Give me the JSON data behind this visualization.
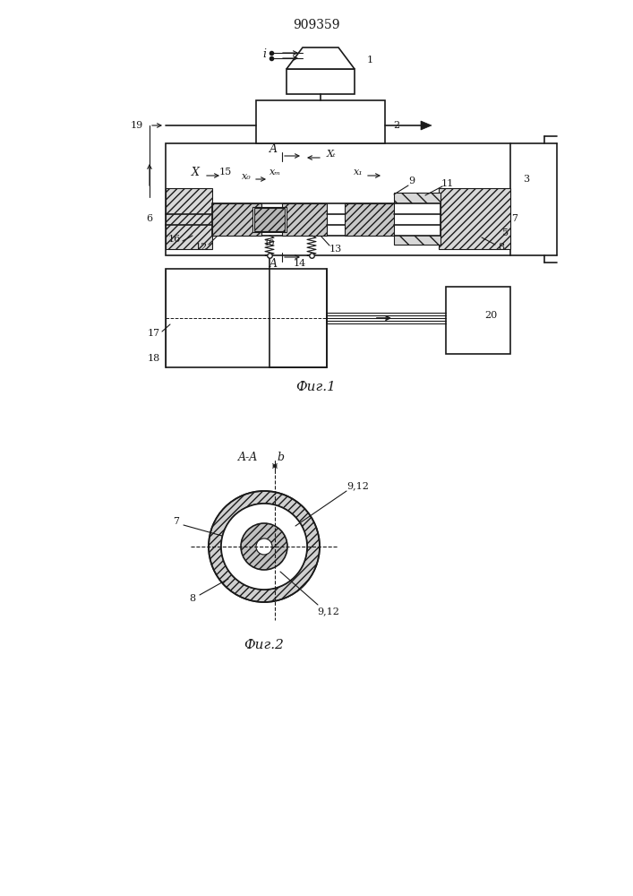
{
  "title": "909359",
  "fig1_label": "Фиг.1",
  "fig2_label": "Фиг.2",
  "line_color": "#1a1a1a"
}
